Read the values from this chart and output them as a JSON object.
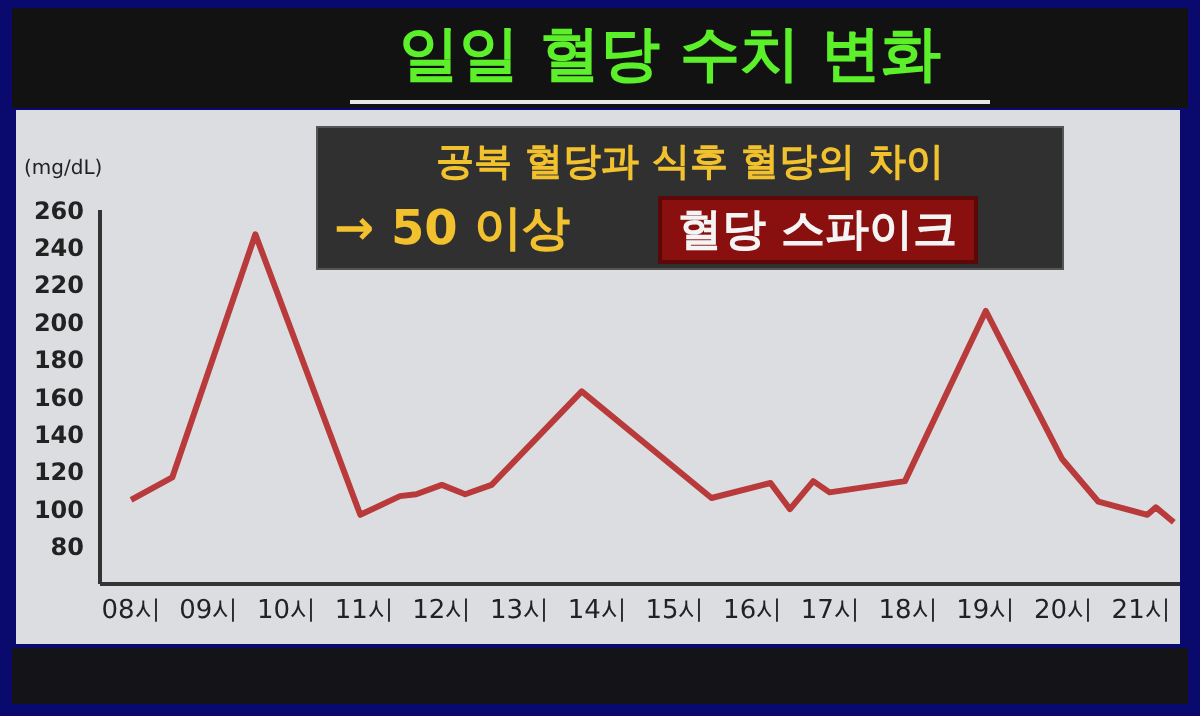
{
  "chart_data": {
    "type": "line",
    "title": "일일 혈당 수치 변화",
    "ylabel": "(mg/dL)",
    "annotations": [
      "공복 혈당과 식후 혈당의 차이",
      "→ 50 이상",
      "혈당 스파이크"
    ],
    "x": [
      8.0,
      8.53,
      9.6,
      10.95,
      11.46,
      11.67,
      12.0,
      12.3,
      12.64,
      13.8,
      15.47,
      16.23,
      16.48,
      16.78,
      16.99,
      17.96,
      19.0,
      19.98,
      20.45,
      21.08,
      21.19,
      21.42
    ],
    "series": [
      {
        "color": "#b83a3a",
        "values": [
          105,
          117,
          247,
          97,
          107,
          108,
          113,
          108,
          113,
          163,
          106,
          114,
          100,
          115,
          109,
          115,
          206,
          127,
          104,
          97,
          101,
          93
        ]
      }
    ],
    "xlim": [
      7.6,
      21.5
    ],
    "xticks": [
      {
        "value": 8,
        "label": "08시"
      },
      {
        "value": 9,
        "label": "09시"
      },
      {
        "value": 10,
        "label": "10시"
      },
      {
        "value": 11,
        "label": "11시"
      },
      {
        "value": 12,
        "label": "12시"
      },
      {
        "value": 13,
        "label": "13시"
      },
      {
        "value": 14,
        "label": "14시"
      },
      {
        "value": 15,
        "label": "15시"
      },
      {
        "value": 16,
        "label": "16시"
      },
      {
        "value": 17,
        "label": "17시"
      },
      {
        "value": 18,
        "label": "18시"
      },
      {
        "value": 19,
        "label": "19시"
      },
      {
        "value": 20,
        "label": "20시"
      },
      {
        "value": 21,
        "label": "21시"
      }
    ],
    "ylim": [
      60,
      260
    ],
    "yticks": [
      80,
      100,
      120,
      140,
      160,
      180,
      200,
      220,
      240,
      260
    ],
    "marker": "none",
    "line_style": "solid"
  }
}
